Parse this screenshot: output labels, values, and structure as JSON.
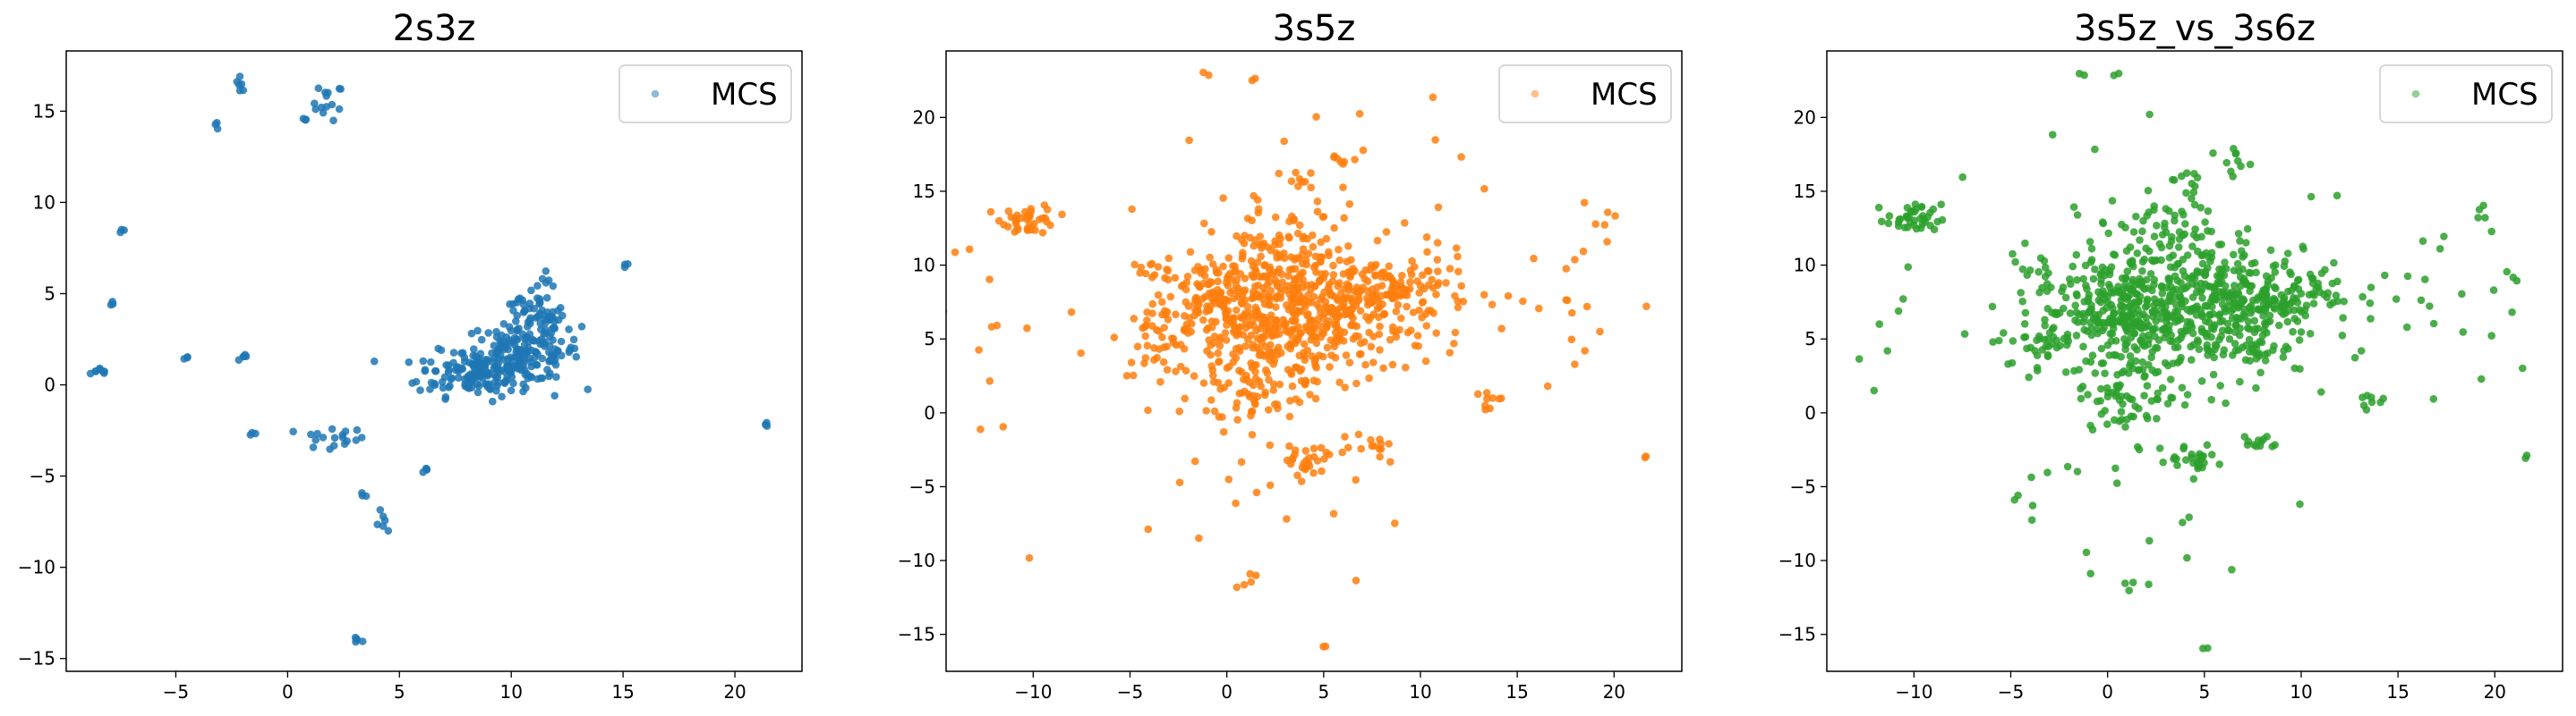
{
  "chart_data": [
    {
      "type": "scatter",
      "title": "2s3z",
      "xlabel": "",
      "ylabel": "",
      "xlim": [
        -9.9,
        23
      ],
      "ylim": [
        -15.7,
        18.3
      ],
      "xticks": [
        -5,
        0,
        5,
        10,
        15,
        20
      ],
      "yticks": [
        -15,
        -10,
        -5,
        0,
        5,
        10,
        15
      ],
      "grid": false,
      "legend": "top-right",
      "series": [
        {
          "name": "MCS",
          "color": "#1f77b4",
          "clusters": [
            [
              -8.3,
              0.7,
              0.25,
              0.15,
              8
            ],
            [
              -7.4,
              8.5,
              0.1,
              0.1,
              3
            ],
            [
              -7.9,
              4.5,
              0.1,
              0.1,
              3
            ],
            [
              -4.6,
              1.4,
              0.1,
              0.1,
              3
            ],
            [
              -3.1,
              14.3,
              0.1,
              0.1,
              3
            ],
            [
              -2.1,
              16.5,
              0.1,
              0.2,
              6
            ],
            [
              -2.0,
              1.5,
              0.15,
              0.1,
              5
            ],
            [
              -1.5,
              -2.7,
              0.1,
              0.1,
              3
            ],
            [
              0.9,
              14.6,
              0.1,
              0.1,
              3
            ],
            [
              1.8,
              15.5,
              0.35,
              0.5,
              14
            ],
            [
              1.9,
              -3.0,
              0.8,
              0.35,
              18
            ],
            [
              3.4,
              -6.0,
              0.1,
              0.1,
              3
            ],
            [
              4.3,
              -7.6,
              0.25,
              0.3,
              6
            ],
            [
              3.1,
              -14.0,
              0.12,
              0.1,
              5
            ],
            [
              6.1,
              -4.6,
              0.1,
              0.15,
              4
            ],
            [
              8.4,
              0.6,
              1.3,
              0.6,
              140
            ],
            [
              10.5,
              1.8,
              1.3,
              0.8,
              160
            ],
            [
              11.5,
              3.3,
              0.5,
              0.6,
              30
            ],
            [
              11.7,
              5.7,
              0.2,
              0.3,
              6
            ],
            [
              10.7,
              4.2,
              0.6,
              0.4,
              20
            ],
            [
              15.3,
              6.7,
              0.1,
              0.1,
              3
            ],
            [
              21.4,
              -2.2,
              0.1,
              0.1,
              3
            ]
          ]
        }
      ]
    },
    {
      "type": "scatter",
      "title": "3s5z",
      "xlabel": "",
      "ylabel": "",
      "xlim": [
        -14.5,
        23.5
      ],
      "ylim": [
        -17.5,
        24.5
      ],
      "xticks": [
        -10,
        -5,
        0,
        5,
        10,
        15,
        20
      ],
      "yticks": [
        -15,
        -10,
        -5,
        0,
        5,
        10,
        15,
        20
      ],
      "grid": false,
      "legend": "top-right",
      "series": [
        {
          "name": "MCS",
          "color": "#ff7f0e",
          "clusters": [
            [
              -10.2,
              13.1,
              0.7,
              0.5,
              40
            ],
            [
              -3.5,
              5.0,
              1.0,
              1.2,
              40
            ],
            [
              -0.5,
              7.3,
              1.6,
              1.6,
              120
            ],
            [
              1.7,
              5.8,
              2.0,
              2.0,
              200
            ],
            [
              3.0,
              9.6,
              2.0,
              2.2,
              180
            ],
            [
              6.3,
              6.0,
              2.0,
              1.8,
              180
            ],
            [
              8.6,
              8.4,
              2.0,
              1.2,
              120
            ],
            [
              1.2,
              1.2,
              1.5,
              1.2,
              60
            ],
            [
              4.2,
              -3.1,
              0.8,
              0.5,
              25
            ],
            [
              7.6,
              -2.0,
              0.5,
              0.3,
              12
            ],
            [
              13.5,
              0.8,
              0.3,
              0.4,
              8
            ],
            [
              3.6,
              15.8,
              0.4,
              0.3,
              8
            ],
            [
              6.2,
              17.3,
              0.4,
              0.4,
              8
            ],
            [
              -4.0,
              10.0,
              0.6,
              0.6,
              10
            ],
            [
              -12.0,
              5.0,
              3.5,
              4.0,
              14
            ],
            [
              0.0,
              -6.0,
              4.0,
              2.5,
              22
            ],
            [
              16.5,
              7.0,
              2.8,
              3.5,
              22
            ],
            [
              4.0,
              14.0,
              5.0,
              3.5,
              20
            ],
            [
              1.3,
              -11.3,
              0.3,
              0.7,
              4
            ],
            [
              5.0,
              -15.9,
              0.1,
              0.1,
              2
            ],
            [
              1.5,
              22.6,
              0.1,
              0.1,
              2
            ],
            [
              -1.2,
              22.9,
              0.1,
              0.1,
              2
            ],
            [
              21.5,
              -3.0,
              0.1,
              0.1,
              2
            ],
            [
              19.3,
              13.1,
              0.4,
              0.4,
              4
            ]
          ]
        }
      ]
    },
    {
      "type": "scatter",
      "title": "3s5z_vs_3s6z",
      "xlabel": "",
      "ylabel": "",
      "xlim": [
        -14.5,
        23.5
      ],
      "ylim": [
        -17.5,
        24.5
      ],
      "xticks": [
        -10,
        -5,
        0,
        5,
        10,
        15,
        20
      ],
      "yticks": [
        -15,
        -10,
        -5,
        0,
        5,
        10,
        15,
        20
      ],
      "grid": false,
      "legend": "top-right",
      "series": [
        {
          "name": "MCS",
          "color": "#2ca02c",
          "clusters": [
            [
              -10.0,
              13.1,
              0.7,
              0.5,
              40
            ],
            [
              -3.5,
              5.0,
              1.0,
              1.2,
              40
            ],
            [
              -0.3,
              7.3,
              1.6,
              1.6,
              120
            ],
            [
              2.0,
              6.0,
              2.0,
              2.0,
              200
            ],
            [
              3.3,
              10.0,
              2.0,
              2.2,
              180
            ],
            [
              6.5,
              6.0,
              2.0,
              1.8,
              180
            ],
            [
              8.8,
              8.4,
              2.0,
              1.2,
              120
            ],
            [
              1.5,
              1.2,
              1.5,
              1.2,
              60
            ],
            [
              4.3,
              -3.1,
              0.8,
              0.5,
              25
            ],
            [
              7.8,
              -2.0,
              0.5,
              0.3,
              12
            ],
            [
              13.6,
              1.0,
              0.3,
              0.4,
              8
            ],
            [
              3.8,
              15.8,
              0.4,
              0.3,
              8
            ],
            [
              6.4,
              17.3,
              0.4,
              0.4,
              8
            ],
            [
              -4.0,
              10.0,
              0.6,
              0.6,
              10
            ],
            [
              -12.0,
              5.0,
              3.5,
              4.0,
              14
            ],
            [
              0.0,
              -6.0,
              4.0,
              2.5,
              22
            ],
            [
              16.8,
              7.5,
              2.8,
              3.5,
              22
            ],
            [
              4.5,
              14.0,
              5.0,
              3.5,
              20
            ],
            [
              1.4,
              -11.5,
              0.3,
              0.6,
              4
            ],
            [
              5.0,
              -15.9,
              0.1,
              0.1,
              2
            ],
            [
              0.5,
              22.8,
              0.1,
              0.1,
              2
            ],
            [
              -1.3,
              22.9,
              0.1,
              0.1,
              2
            ],
            [
              21.7,
              -3.0,
              0.1,
              0.1,
              2
            ],
            [
              19.5,
              12.8,
              0.4,
              0.6,
              5
            ]
          ]
        }
      ]
    }
  ]
}
